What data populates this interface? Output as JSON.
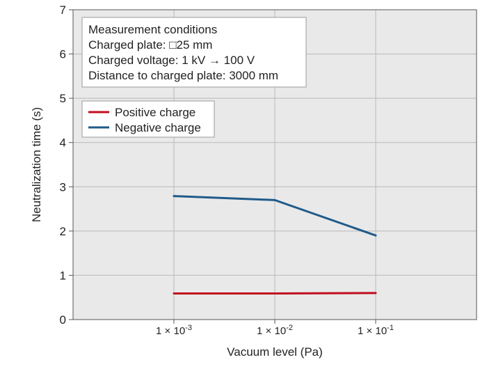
{
  "chart_data": {
    "type": "line",
    "title": "",
    "xlabel": "Vacuum level (Pa)",
    "ylabel": "Neutralization time (s)",
    "ylim": [
      0,
      7
    ],
    "yticks": [
      0,
      1,
      2,
      3,
      4,
      5,
      6,
      7
    ],
    "categories": [
      {
        "base": "1 × 10",
        "exp": "-3"
      },
      {
        "base": "1 × 10",
        "exp": "-2"
      },
      {
        "base": "1 × 10",
        "exp": "-1"
      }
    ],
    "series": [
      {
        "name": "Positive charge",
        "color": "#c00d1e",
        "values": [
          0.59,
          0.59,
          0.6
        ]
      },
      {
        "name": "Negative charge",
        "color": "#1f5a8a",
        "values": [
          2.79,
          2.7,
          1.9
        ]
      }
    ],
    "grid": true,
    "legend_position": "top-left",
    "annotation": {
      "lines": [
        "Measurement conditions",
        "Charged plate: □25 mm",
        "Charged voltage: 1 kV → 100 V",
        "Distance to charged plate: 3000 mm"
      ]
    }
  }
}
